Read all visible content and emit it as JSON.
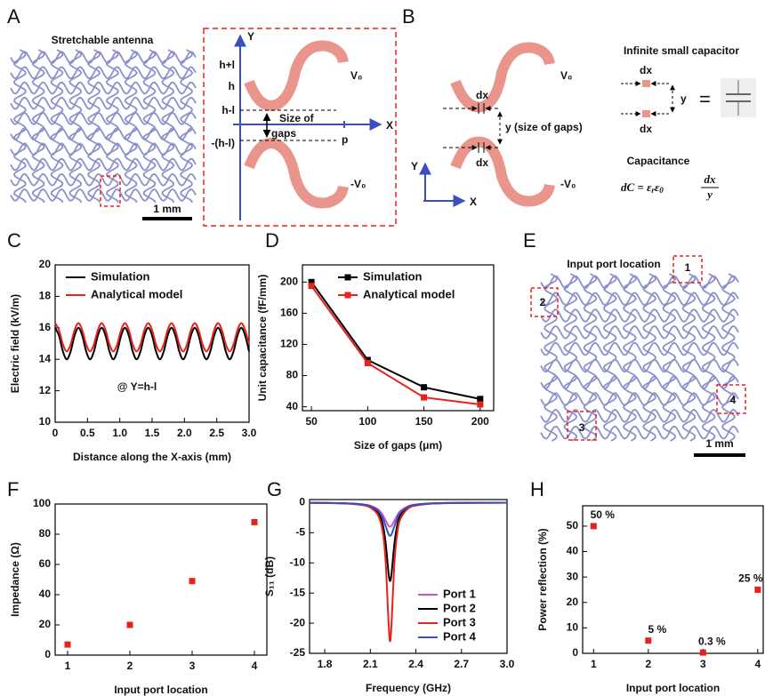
{
  "panel_labels": [
    "A",
    "B",
    "C",
    "D",
    "E",
    "F",
    "G",
    "H"
  ],
  "diagrams": {
    "a": {
      "title": "Stretchable antenna",
      "scale": "1 mm",
      "y_axis": "Y",
      "x_axis": "X",
      "levels": [
        "h+l",
        "h",
        "h-l",
        "-(h-l)"
      ],
      "p": "p",
      "gap": [
        "Size of",
        "gaps"
      ],
      "v_pos": "V₀",
      "v_neg": "-V₀"
    },
    "b": {
      "dx": "dx",
      "gap": "y (size of gaps)",
      "v_pos": "V₀",
      "v_neg": "-V₀",
      "y_axis": "Y",
      "x_axis": "X",
      "cap_title": "Infinite small capacitor",
      "cap_y": "y",
      "equals": "=",
      "capacitance": "Capacitance",
      "formula": {
        "lhs": "dC = ε",
        "sub1": "r",
        "mid": "ε",
        "sub2": "0",
        "num": "dx",
        "den": "y"
      }
    },
    "e": {
      "title": "Input port location",
      "ports": [
        "1",
        "2",
        "3",
        "4"
      ],
      "scale": "1 mm"
    }
  },
  "chart_data": [
    {
      "type": "line",
      "xlabel": "Distance along the X-axis (mm)",
      "ylabel": "Electric field (kV/m)",
      "xlim": [
        0,
        3
      ],
      "xticks": [
        0,
        0.5,
        {
          "value": 1,
          "label": "1.0"
        },
        1.5,
        {
          "value": 2,
          "label": "2.0"
        },
        2.5,
        {
          "value": 3,
          "label": "3.0"
        }
      ],
      "ylim": [
        10,
        20
      ],
      "yticks": [
        10,
        12,
        14,
        16,
        18,
        20
      ],
      "legend": "upper left",
      "annotations": [
        "@ Y=h-l"
      ],
      "x": [
        0,
        0.06,
        0.12,
        0.18,
        0.24,
        0.3,
        0.36,
        0.42,
        0.48,
        0.54,
        0.6,
        0.66,
        0.72,
        0.78,
        0.84,
        0.9,
        0.96,
        1.02,
        1.08,
        1.14,
        1.2,
        1.26,
        1.32,
        1.38,
        1.44,
        1.5,
        1.56,
        1.62,
        1.68,
        1.74,
        1.8,
        1.86,
        1.92,
        1.98,
        2.04,
        2.1,
        2.16,
        2.22,
        2.28,
        2.34,
        2.4,
        2.46,
        2.52,
        2.58,
        2.64,
        2.7,
        2.76,
        2.82,
        2.88,
        2.94,
        3.0
      ],
      "series": [
        {
          "name": "Simulation",
          "color": "#000000",
          "values": [
            16,
            15.5,
            14.5,
            14,
            14.5,
            15.5,
            16,
            15.5,
            14.5,
            14,
            14.5,
            15.5,
            16,
            15.5,
            14.5,
            14,
            14.5,
            15.5,
            16,
            15.5,
            14.5,
            14,
            14.5,
            15.5,
            16,
            15.5,
            14.5,
            14,
            14.5,
            15.5,
            16,
            15.5,
            14.5,
            14,
            14.5,
            15.5,
            16,
            15.5,
            14.5,
            14,
            14.5,
            15.5,
            16,
            15.5,
            14.5,
            14,
            14.5,
            15.5,
            16,
            15.5,
            14.5
          ]
        },
        {
          "name": "Analytical model",
          "color": "#e8211d",
          "values": [
            16.3,
            15.85,
            14.95,
            14.5,
            14.95,
            15.85,
            16.3,
            15.85,
            14.95,
            14.5,
            14.95,
            15.85,
            16.3,
            15.85,
            14.95,
            14.5,
            14.95,
            15.85,
            16.3,
            15.85,
            14.95,
            14.5,
            14.95,
            15.85,
            16.3,
            15.85,
            14.95,
            14.5,
            14.95,
            15.85,
            16.3,
            15.85,
            14.95,
            14.5,
            14.95,
            15.85,
            16.3,
            15.85,
            14.95,
            14.5,
            14.95,
            15.85,
            16.3,
            15.85,
            14.95,
            14.5,
            14.95,
            15.85,
            16.3,
            15.85,
            14.95
          ]
        }
      ]
    },
    {
      "type": "line",
      "xlabel": "Size of gaps (μm)",
      "ylabel": "Unit capacitance (fF/mm)",
      "markers": true,
      "xlim": [
        42,
        212
      ],
      "xticks": [
        50,
        100,
        150,
        200
      ],
      "ylim": [
        35,
        222
      ],
      "yticks": [
        40,
        80,
        120,
        160,
        200
      ],
      "legend": "upper right",
      "x": [
        50,
        100,
        150,
        200
      ],
      "series": [
        {
          "name": "Simulation",
          "color": "#000000",
          "values": [
            200,
            100,
            65,
            50
          ]
        },
        {
          "name": "Analytical model",
          "color": "#e8211d",
          "values": [
            195,
            96,
            52,
            43
          ]
        }
      ]
    },
    {
      "type": "scatter",
      "xlabel": "Input port location",
      "ylabel": "Impedance (Ω)",
      "xlim": [
        0.8,
        4.2
      ],
      "xticks": [
        1,
        2,
        3,
        4
      ],
      "ylim": [
        0,
        100
      ],
      "yticks": [
        0,
        20,
        40,
        60,
        80,
        100
      ],
      "x": [
        1,
        2,
        3,
        4
      ],
      "values": [
        7,
        20,
        49,
        88
      ],
      "color": "#e8211d"
    },
    {
      "type": "line",
      "xlabel": "Frequency (GHz)",
      "ylabel": "S₁₁ (dB)",
      "xlim": [
        1.7,
        3.0
      ],
      "xticks": [
        1.8,
        2.1,
        2.4,
        2.7,
        {
          "value": 3,
          "label": "3.0"
        }
      ],
      "ylim": [
        -25,
        0.5
      ],
      "yticks": [
        0,
        -5,
        -10,
        -15,
        -20,
        -25
      ],
      "legend": "lower right",
      "x": [
        1.7,
        1.8,
        1.9,
        2.0,
        2.05,
        2.1,
        2.15,
        2.18,
        2.2,
        2.22,
        2.23,
        2.24,
        2.26,
        2.28,
        2.3,
        2.35,
        2.4,
        2.5,
        2.6,
        2.7,
        2.8,
        2.9,
        3.0
      ],
      "series": [
        {
          "name": "Port 1",
          "color": "#c855c8",
          "values": [
            -0.04,
            -0.05,
            -0.09,
            -0.18,
            -0.29,
            -0.52,
            -1.12,
            -2,
            -2.94,
            -3.85,
            -4,
            -3.85,
            -2.94,
            -2,
            -1.35,
            -0.59,
            -0.32,
            -0.13,
            -0.07,
            -0.04,
            -0.03,
            -0.02,
            -0.02
          ]
        },
        {
          "name": "Port 2",
          "color": "#000000",
          "values": [
            -0.04,
            -0.06,
            -0.11,
            -0.22,
            -0.35,
            -0.66,
            -1.6,
            -3.44,
            -6.5,
            -11.71,
            -13,
            -11.71,
            -6.5,
            -3.44,
            -2.02,
            -0.76,
            -0.39,
            -0.16,
            -0.08,
            -0.05,
            -0.04,
            -0.03,
            -0.02
          ]
        },
        {
          "name": "Port 3",
          "color": "#e8211d",
          "values": [
            -0.05,
            -0.08,
            -0.13,
            -0.27,
            -0.43,
            -0.82,
            -2.05,
            -4.6,
            -9.43,
            -19.83,
            -23,
            -19.83,
            -9.43,
            -4.6,
            -2.6,
            -0.96,
            -0.49,
            -0.19,
            -0.1,
            -0.06,
            -0.04,
            -0.03,
            -0.02
          ]
        },
        {
          "name": "Port 4",
          "color": "#3a4fc0",
          "values": [
            -0.04,
            -0.06,
            -0.1,
            -0.2,
            -0.32,
            -0.59,
            -1.32,
            -2.47,
            -3.82,
            -5.24,
            -5.5,
            -5.24,
            -3.82,
            -2.47,
            -1.61,
            -0.68,
            -0.36,
            -0.15,
            -0.08,
            -0.05,
            -0.03,
            -0.02,
            -0.02
          ]
        }
      ]
    },
    {
      "type": "scatter",
      "xlabel": "Input port location",
      "ylabel": "Power reflection (%)",
      "xlim": [
        0.8,
        4.1
      ],
      "xticks": [
        1,
        2,
        3,
        4
      ],
      "ylim": [
        0,
        58
      ],
      "yticks": [
        0,
        10,
        20,
        30,
        40,
        50
      ],
      "x": [
        1,
        2,
        3,
        4
      ],
      "values": [
        50,
        5,
        0.3,
        25
      ],
      "value_labels": [
        "50 %",
        "5 %",
        "0.3 %",
        "25 %"
      ],
      "color": "#e8211d"
    }
  ]
}
